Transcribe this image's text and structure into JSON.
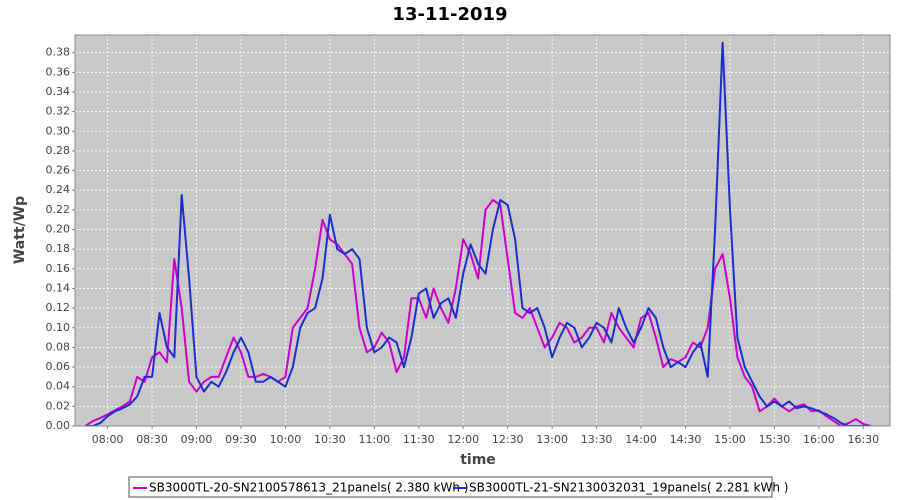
{
  "chart_data": {
    "type": "line",
    "title": "13-11-2019",
    "x_label": "time",
    "y_label": "Watt/Wp",
    "x": [
      "07:45",
      "07:50",
      "07:55",
      "08:00",
      "08:05",
      "08:10",
      "08:15",
      "08:20",
      "08:25",
      "08:30",
      "08:35",
      "08:40",
      "08:45",
      "08:50",
      "08:55",
      "09:00",
      "09:05",
      "09:10",
      "09:15",
      "09:20",
      "09:25",
      "09:30",
      "09:35",
      "09:40",
      "09:45",
      "09:50",
      "09:55",
      "10:00",
      "10:05",
      "10:10",
      "10:15",
      "10:20",
      "10:25",
      "10:30",
      "10:35",
      "10:40",
      "10:45",
      "10:50",
      "10:55",
      "11:00",
      "11:05",
      "11:10",
      "11:15",
      "11:20",
      "11:25",
      "11:30",
      "11:35",
      "11:40",
      "11:45",
      "11:50",
      "11:55",
      "12:00",
      "12:05",
      "12:10",
      "12:15",
      "12:20",
      "12:25",
      "12:30",
      "12:35",
      "12:40",
      "12:45",
      "12:50",
      "12:55",
      "13:00",
      "13:05",
      "13:10",
      "13:15",
      "13:20",
      "13:25",
      "13:30",
      "13:35",
      "13:40",
      "13:45",
      "13:50",
      "13:55",
      "14:00",
      "14:05",
      "14:10",
      "14:15",
      "14:20",
      "14:25",
      "14:30",
      "14:35",
      "14:40",
      "14:45",
      "14:50",
      "14:55",
      "15:00",
      "15:05",
      "15:10",
      "15:15",
      "15:20",
      "15:25",
      "15:30",
      "15:35",
      "15:40",
      "15:45",
      "15:50",
      "15:55",
      "16:00",
      "16:05",
      "16:10",
      "16:15",
      "16:20",
      "16:25",
      "16:30",
      "16:35"
    ],
    "series": [
      {
        "name": "SB3000TL-20-SN2100578613_21panels( 2.380 kWh )",
        "color": "#cc00cc",
        "values": [
          0,
          0.005,
          0.008,
          0.012,
          0.016,
          0.02,
          0.025,
          0.05,
          0.045,
          0.07,
          0.075,
          0.065,
          0.17,
          0.12,
          0.045,
          0.035,
          0.045,
          0.05,
          0.05,
          0.07,
          0.09,
          0.075,
          0.05,
          0.05,
          0.053,
          0.05,
          0.045,
          0.05,
          0.1,
          0.11,
          0.12,
          0.16,
          0.21,
          0.19,
          0.185,
          0.175,
          0.165,
          0.1,
          0.075,
          0.08,
          0.095,
          0.085,
          0.055,
          0.07,
          0.13,
          0.13,
          0.11,
          0.14,
          0.12,
          0.105,
          0.14,
          0.19,
          0.175,
          0.15,
          0.22,
          0.23,
          0.225,
          0.17,
          0.115,
          0.11,
          0.12,
          0.1,
          0.08,
          0.09,
          0.105,
          0.1,
          0.085,
          0.09,
          0.1,
          0.1,
          0.085,
          0.115,
          0.1,
          0.09,
          0.08,
          0.11,
          0.115,
          0.09,
          0.06,
          0.068,
          0.065,
          0.07,
          0.085,
          0.08,
          0.1,
          0.16,
          0.175,
          0.13,
          0.07,
          0.05,
          0.04,
          0.015,
          0.02,
          0.028,
          0.02,
          0.015,
          0.02,
          0.022,
          0.015,
          0.016,
          0.01,
          0.005,
          0,
          0.003,
          0.007,
          0.002,
          0
        ]
      },
      {
        "name": "SB3000TL-21-SN2130032031_19panels( 2.281 kWh )",
        "color": "#1a2fcc",
        "values": [
          0,
          0,
          0.003,
          0.01,
          0.015,
          0.018,
          0.022,
          0.03,
          0.05,
          0.05,
          0.115,
          0.08,
          0.07,
          0.235,
          0.15,
          0.05,
          0.035,
          0.045,
          0.04,
          0.055,
          0.075,
          0.09,
          0.075,
          0.045,
          0.045,
          0.05,
          0.045,
          0.04,
          0.06,
          0.1,
          0.115,
          0.12,
          0.15,
          0.215,
          0.18,
          0.175,
          0.18,
          0.17,
          0.1,
          0.075,
          0.08,
          0.09,
          0.085,
          0.06,
          0.09,
          0.135,
          0.14,
          0.11,
          0.125,
          0.13,
          0.11,
          0.155,
          0.185,
          0.165,
          0.155,
          0.2,
          0.23,
          0.225,
          0.19,
          0.12,
          0.115,
          0.12,
          0.1,
          0.07,
          0.09,
          0.105,
          0.1,
          0.08,
          0.09,
          0.105,
          0.1,
          0.085,
          0.12,
          0.1,
          0.085,
          0.1,
          0.12,
          0.11,
          0.08,
          0.06,
          0.065,
          0.06,
          0.075,
          0.085,
          0.05,
          0.2,
          0.39,
          0.22,
          0.09,
          0.06,
          0.045,
          0.03,
          0.02,
          0.025,
          0.02,
          0.025,
          0.018,
          0.02,
          0.018,
          0.015,
          0.012,
          0.008,
          0.003,
          0,
          0,
          0,
          0
        ]
      }
    ],
    "xlim": [
      "07:38",
      "16:48"
    ],
    "xticks": [
      "08:00",
      "08:30",
      "09:00",
      "09:30",
      "10:00",
      "10:30",
      "11:00",
      "11:30",
      "12:00",
      "12:30",
      "13:00",
      "13:30",
      "14:00",
      "14:30",
      "15:00",
      "15:30",
      "16:00",
      "16:30"
    ],
    "ylim": [
      0,
      0.398
    ],
    "yticks": [
      {
        "value": 0,
        "label": "0.00"
      },
      {
        "value": 0.02,
        "label": "0.02"
      },
      {
        "value": 0.04,
        "label": "0.04"
      },
      {
        "value": 0.06,
        "label": "0.06"
      },
      {
        "value": 0.08,
        "label": "0.08"
      },
      {
        "value": 0.1,
        "label": "0.10"
      },
      {
        "value": 0.12,
        "label": "0.12"
      },
      {
        "value": 0.14,
        "label": "0.14"
      },
      {
        "value": 0.16,
        "label": "0.16"
      },
      {
        "value": 0.18,
        "label": "0.18"
      },
      {
        "value": 0.2,
        "label": "0.20"
      },
      {
        "value": 0.22,
        "label": "0.22"
      },
      {
        "value": 0.24,
        "label": "0.24"
      },
      {
        "value": 0.26,
        "label": "0.26"
      },
      {
        "value": 0.28,
        "label": "0.28"
      },
      {
        "value": 0.3,
        "label": "0.30"
      },
      {
        "value": 0.32,
        "label": "0.32"
      },
      {
        "value": 0.34,
        "label": "0.34"
      },
      {
        "value": 0.36,
        "label": "0.36"
      },
      {
        "value": 0.38,
        "label": "0.38"
      }
    ],
    "grid": true
  }
}
